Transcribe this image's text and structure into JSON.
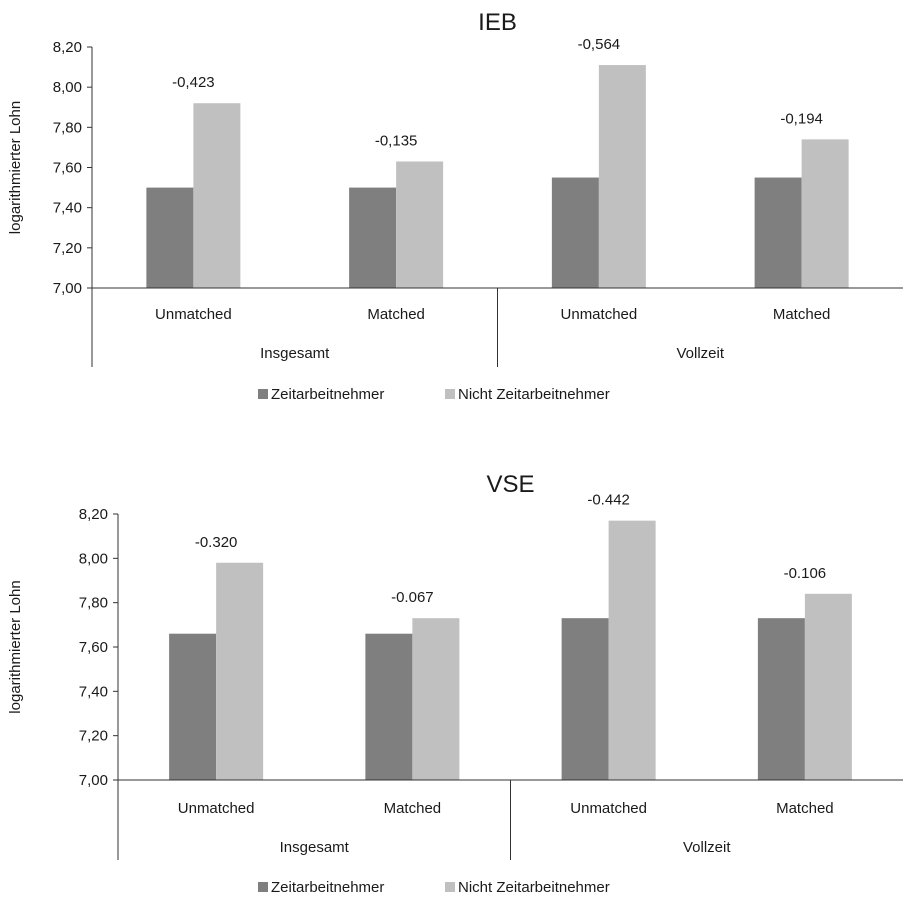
{
  "chart_data": [
    {
      "type": "bar",
      "title": "IEB",
      "ylabel": "logarithmierter Lohn",
      "xlabel": "",
      "ylim": [
        7.0,
        8.2
      ],
      "yticks": [
        7.0,
        7.2,
        7.4,
        7.6,
        7.8,
        8.0,
        8.2
      ],
      "ytick_labels": [
        "7,00",
        "7,20",
        "7,40",
        "7,60",
        "7,80",
        "8,00",
        "8,20"
      ],
      "categories": [
        "Unmatched",
        "Matched",
        "Unmatched",
        "Matched"
      ],
      "groups": [
        {
          "label": "Insgesamt",
          "categories": [
            0,
            1
          ]
        },
        {
          "label": "Vollzeit",
          "categories": [
            2,
            3
          ]
        }
      ],
      "series": [
        {
          "name": "Zeitarbeitnehmer",
          "color": "#7f7f7f",
          "values": [
            7.5,
            7.5,
            7.55,
            7.55
          ]
        },
        {
          "name": "Nicht Zeitarbeitnehmer",
          "color": "#c0c0c0",
          "values": [
            7.92,
            7.63,
            8.11,
            7.74
          ]
        }
      ],
      "annotations": [
        "-0,423",
        "-0,135",
        "-0,564",
        "-0,194"
      ],
      "grid": false,
      "legend": "bottom"
    },
    {
      "type": "bar",
      "title": "VSE",
      "ylabel": "logarithmierter Lohn",
      "xlabel": "",
      "ylim": [
        7.0,
        8.2
      ],
      "yticks": [
        7.0,
        7.2,
        7.4,
        7.6,
        7.8,
        8.0,
        8.2
      ],
      "ytick_labels": [
        "7,00",
        "7,20",
        "7,40",
        "7,60",
        "7,80",
        "8,00",
        "8,20"
      ],
      "categories": [
        "Unmatched",
        "Matched",
        "Unmatched",
        "Matched"
      ],
      "groups": [
        {
          "label": "Insgesamt",
          "categories": [
            0,
            1
          ]
        },
        {
          "label": "Vollzeit",
          "categories": [
            2,
            3
          ]
        }
      ],
      "series": [
        {
          "name": "Zeitarbeitnehmer",
          "color": "#7f7f7f",
          "values": [
            7.66,
            7.66,
            7.73,
            7.73
          ]
        },
        {
          "name": "Nicht Zeitarbeitnehmer",
          "color": "#c0c0c0",
          "values": [
            7.98,
            7.73,
            8.17,
            7.84
          ]
        }
      ],
      "annotations": [
        "-0.320",
        "-0.067",
        "-0.442",
        "-0.106"
      ],
      "grid": false,
      "legend": "bottom"
    }
  ]
}
